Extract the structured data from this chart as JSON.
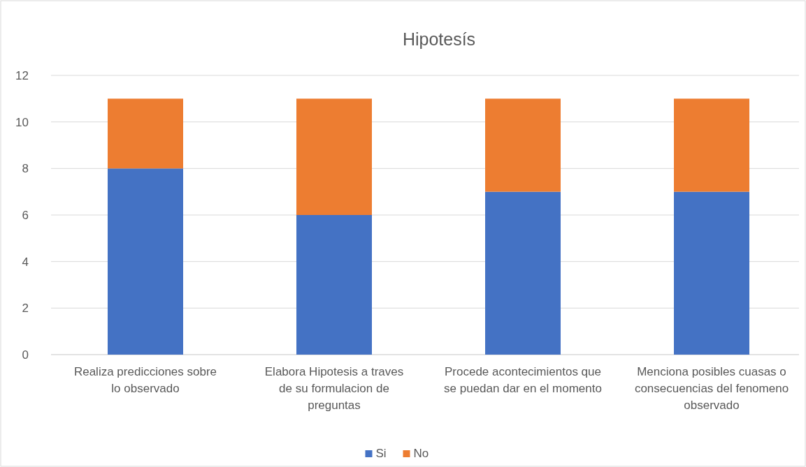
{
  "chart_data": {
    "type": "bar",
    "title": "Hipotesís",
    "stacked": true,
    "categories": [
      "Realiza predicciones sobre lo observado",
      "Elabora Hipotesis a traves de su formulacion de preguntas",
      "Procede acontecimientos que se puedan dar en el momento",
      "Menciona posibles cuasas o consecuencias del fenomeno observado"
    ],
    "series": [
      {
        "name": "Si",
        "color": "#4472c4",
        "values": [
          8,
          6,
          7,
          7
        ]
      },
      {
        "name": "No",
        "color": "#ed7d31",
        "values": [
          3,
          5,
          4,
          4
        ]
      }
    ],
    "ylim": [
      0,
      12
    ],
    "yticks": [
      0,
      2,
      4,
      6,
      8,
      10,
      12
    ],
    "grid": "y",
    "legend": "bottom"
  }
}
